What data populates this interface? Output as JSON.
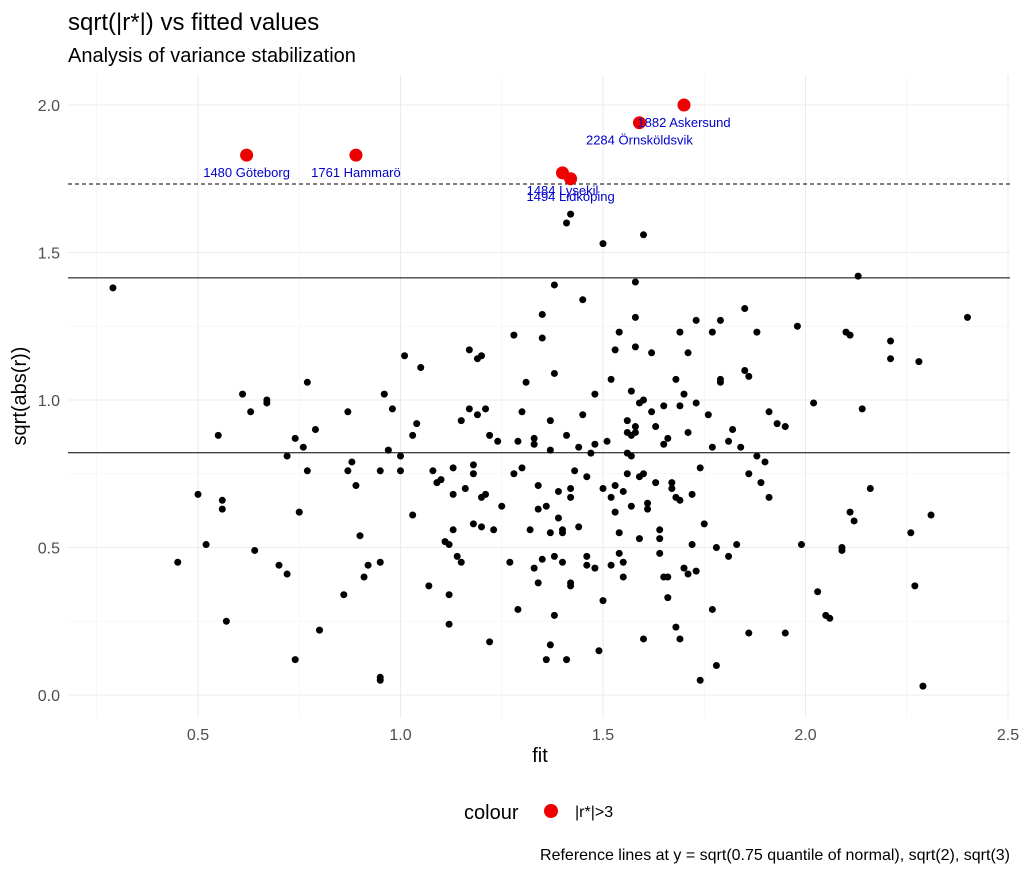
{
  "chart_data": {
    "type": "scatter",
    "title": "sqrt(|r*|) vs fitted values",
    "subtitle": "Analysis of variance stabilization",
    "xlabel": "fit",
    "ylabel": "sqrt(abs(r))",
    "xlim": [
      0.24,
      2.5
    ],
    "ylim": [
      -0.05,
      2.05
    ],
    "xticks": [
      "0.5",
      "1.0",
      "1.5",
      "2.0",
      "2.5"
    ],
    "yticks": [
      "0.0",
      "0.5",
      "1.0",
      "1.5",
      "2.0"
    ],
    "grid": true,
    "reference_lines": {
      "solid": [
        0.821,
        1.414
      ],
      "dashed": [
        1.732
      ]
    },
    "caption": "Reference lines at y = sqrt(0.75 quantile of normal), sqrt(2), sqrt(3)",
    "legend": {
      "title": "colour",
      "label": "|r*|>3",
      "color": "#ee0000",
      "position": "bottom"
    },
    "outliers": [
      {
        "x": 0.62,
        "y": 1.83,
        "label": "1480 Göteborg"
      },
      {
        "x": 0.89,
        "y": 1.83,
        "label": "1761 Hammarö"
      },
      {
        "x": 1.4,
        "y": 1.77,
        "label": "1484 Lysekil"
      },
      {
        "x": 1.42,
        "y": 1.75,
        "label": "1494 Lidköping"
      },
      {
        "x": 1.59,
        "y": 1.94,
        "label": "2284 Örnsköldsvik"
      },
      {
        "x": 1.7,
        "y": 2.0,
        "label": "1882 Askersund"
      }
    ],
    "points": [
      [
        0.29,
        1.38
      ],
      [
        0.45,
        0.45
      ],
      [
        0.5,
        0.68
      ],
      [
        0.52,
        0.51
      ],
      [
        0.55,
        0.88
      ],
      [
        0.56,
        0.66
      ],
      [
        0.56,
        0.63
      ],
      [
        0.57,
        0.25
      ],
      [
        0.61,
        1.02
      ],
      [
        0.63,
        0.96
      ],
      [
        0.64,
        0.49
      ],
      [
        0.67,
        0.99
      ],
      [
        0.67,
        1.0
      ],
      [
        0.7,
        0.44
      ],
      [
        0.72,
        0.81
      ],
      [
        0.72,
        0.41
      ],
      [
        0.74,
        0.12
      ],
      [
        0.74,
        0.87
      ],
      [
        0.75,
        0.62
      ],
      [
        0.76,
        0.84
      ],
      [
        0.77,
        0.76
      ],
      [
        0.77,
        1.06
      ],
      [
        0.79,
        0.9
      ],
      [
        0.8,
        0.22
      ],
      [
        0.86,
        0.34
      ],
      [
        0.87,
        0.76
      ],
      [
        0.87,
        0.96
      ],
      [
        0.88,
        0.79
      ],
      [
        0.89,
        0.71
      ],
      [
        0.9,
        0.54
      ],
      [
        0.91,
        0.4
      ],
      [
        0.92,
        0.44
      ],
      [
        0.95,
        0.45
      ],
      [
        0.95,
        0.76
      ],
      [
        0.95,
        0.06
      ],
      [
        0.95,
        0.05
      ],
      [
        0.96,
        1.02
      ],
      [
        0.97,
        0.83
      ],
      [
        0.98,
        0.97
      ],
      [
        1.0,
        0.76
      ],
      [
        1.01,
        1.15
      ],
      [
        1.03,
        0.61
      ],
      [
        1.03,
        0.88
      ],
      [
        1.04,
        0.92
      ],
      [
        1.05,
        1.11
      ],
      [
        1.07,
        0.37
      ],
      [
        1.08,
        0.76
      ],
      [
        1.09,
        0.72
      ],
      [
        1.1,
        0.73
      ],
      [
        1.11,
        0.52
      ],
      [
        1.12,
        0.51
      ],
      [
        1.12,
        0.24
      ],
      [
        1.12,
        0.34
      ],
      [
        1.13,
        0.68
      ],
      [
        1.13,
        0.56
      ],
      [
        1.14,
        0.47
      ],
      [
        1.15,
        0.45
      ],
      [
        1.15,
        0.93
      ],
      [
        1.16,
        0.7
      ],
      [
        1.17,
        0.97
      ],
      [
        1.17,
        1.17
      ],
      [
        1.18,
        0.78
      ],
      [
        1.18,
        0.75
      ],
      [
        1.19,
        0.95
      ],
      [
        1.19,
        1.14
      ],
      [
        1.2,
        0.67
      ],
      [
        1.2,
        1.15
      ],
      [
        1.2,
        0.57
      ],
      [
        1.21,
        0.68
      ],
      [
        1.21,
        0.97
      ],
      [
        1.22,
        0.18
      ],
      [
        1.22,
        0.88
      ],
      [
        1.23,
        0.56
      ],
      [
        1.24,
        0.86
      ],
      [
        1.27,
        0.45
      ],
      [
        1.28,
        0.75
      ],
      [
        1.28,
        1.22
      ],
      [
        1.29,
        0.86
      ],
      [
        1.29,
        0.29
      ],
      [
        1.3,
        0.77
      ],
      [
        1.31,
        1.06
      ],
      [
        1.32,
        0.56
      ],
      [
        1.33,
        0.43
      ],
      [
        1.33,
        0.87
      ],
      [
        1.33,
        0.85
      ],
      [
        1.34,
        0.63
      ],
      [
        1.34,
        0.71
      ],
      [
        1.35,
        1.21
      ],
      [
        1.35,
        1.29
      ],
      [
        1.35,
        0.46
      ],
      [
        1.36,
        0.64
      ],
      [
        1.36,
        0.12
      ],
      [
        1.37,
        0.83
      ],
      [
        1.37,
        0.55
      ],
      [
        1.37,
        0.93
      ],
      [
        1.37,
        0.17
      ],
      [
        1.38,
        0.27
      ],
      [
        1.38,
        0.47
      ],
      [
        1.38,
        1.39
      ],
      [
        1.38,
        1.09
      ],
      [
        1.39,
        0.69
      ],
      [
        1.39,
        0.6
      ],
      [
        1.4,
        0.56
      ],
      [
        1.4,
        0.55
      ],
      [
        1.4,
        0.45
      ],
      [
        1.41,
        0.12
      ],
      [
        1.41,
        0.88
      ],
      [
        1.41,
        1.6
      ],
      [
        1.42,
        0.7
      ],
      [
        1.42,
        0.67
      ],
      [
        1.42,
        0.37
      ],
      [
        1.42,
        0.38
      ],
      [
        1.42,
        1.63
      ],
      [
        1.43,
        0.76
      ],
      [
        1.44,
        0.57
      ],
      [
        1.45,
        1.34
      ],
      [
        1.45,
        0.95
      ],
      [
        1.46,
        0.47
      ],
      [
        1.46,
        0.44
      ],
      [
        1.47,
        0.82
      ],
      [
        1.48,
        0.85
      ],
      [
        1.48,
        0.43
      ],
      [
        1.48,
        1.02
      ],
      [
        1.49,
        0.15
      ],
      [
        1.5,
        0.7
      ],
      [
        1.5,
        1.53
      ],
      [
        1.5,
        0.32
      ],
      [
        1.51,
        0.86
      ],
      [
        1.52,
        0.67
      ],
      [
        1.52,
        0.44
      ],
      [
        1.53,
        0.71
      ],
      [
        1.53,
        0.62
      ],
      [
        1.54,
        1.23
      ],
      [
        1.54,
        0.48
      ],
      [
        1.54,
        0.55
      ],
      [
        1.55,
        0.69
      ],
      [
        1.55,
        0.45
      ],
      [
        1.55,
        0.4
      ],
      [
        1.56,
        0.93
      ],
      [
        1.56,
        0.89
      ],
      [
        1.56,
        0.82
      ],
      [
        1.56,
        0.75
      ],
      [
        1.57,
        0.88
      ],
      [
        1.57,
        0.81
      ],
      [
        1.57,
        0.64
      ],
      [
        1.57,
        1.03
      ],
      [
        1.58,
        0.91
      ],
      [
        1.58,
        1.4
      ],
      [
        1.58,
        1.28
      ],
      [
        1.58,
        1.18
      ],
      [
        1.58,
        0.89
      ],
      [
        1.59,
        0.53
      ],
      [
        1.59,
        0.99
      ],
      [
        1.6,
        1.0
      ],
      [
        1.6,
        0.75
      ],
      [
        1.6,
        0.19
      ],
      [
        1.6,
        1.56
      ],
      [
        1.61,
        0.63
      ],
      [
        1.61,
        0.65
      ],
      [
        1.62,
        1.16
      ],
      [
        1.62,
        0.96
      ],
      [
        1.63,
        0.72
      ],
      [
        1.64,
        0.53
      ],
      [
        1.64,
        0.56
      ],
      [
        1.64,
        0.48
      ],
      [
        1.65,
        0.85
      ],
      [
        1.65,
        0.4
      ],
      [
        1.65,
        0.98
      ],
      [
        1.66,
        0.33
      ],
      [
        1.66,
        0.4
      ],
      [
        1.67,
        0.72
      ],
      [
        1.67,
        0.7
      ],
      [
        1.68,
        1.07
      ],
      [
        1.68,
        0.67
      ],
      [
        1.68,
        0.23
      ],
      [
        1.69,
        0.66
      ],
      [
        1.69,
        1.23
      ],
      [
        1.69,
        0.98
      ],
      [
        1.69,
        0.19
      ],
      [
        1.7,
        1.02
      ],
      [
        1.7,
        0.43
      ],
      [
        1.71,
        1.16
      ],
      [
        1.71,
        0.41
      ],
      [
        1.71,
        0.89
      ],
      [
        1.72,
        0.51
      ],
      [
        1.72,
        0.68
      ],
      [
        1.73,
        0.42
      ],
      [
        1.73,
        0.99
      ],
      [
        1.73,
        1.27
      ],
      [
        1.74,
        0.05
      ],
      [
        1.74,
        0.77
      ],
      [
        1.76,
        0.95
      ],
      [
        1.77,
        0.29
      ],
      [
        1.77,
        0.84
      ],
      [
        1.77,
        1.23
      ],
      [
        1.78,
        0.5
      ],
      [
        1.78,
        0.1
      ],
      [
        1.79,
        1.06
      ],
      [
        1.79,
        1.07
      ],
      [
        1.79,
        1.27
      ],
      [
        1.81,
        0.86
      ],
      [
        1.81,
        0.47
      ],
      [
        1.82,
        0.9
      ],
      [
        1.83,
        0.51
      ],
      [
        1.84,
        0.84
      ],
      [
        1.85,
        1.31
      ],
      [
        1.85,
        1.1
      ],
      [
        1.86,
        0.75
      ],
      [
        1.86,
        1.08
      ],
      [
        1.86,
        0.21
      ],
      [
        1.88,
        1.23
      ],
      [
        1.88,
        0.81
      ],
      [
        1.89,
        0.72
      ],
      [
        1.9,
        0.79
      ],
      [
        1.91,
        0.96
      ],
      [
        1.93,
        0.92
      ],
      [
        1.95,
        0.91
      ],
      [
        1.95,
        0.21
      ],
      [
        1.98,
        1.25
      ],
      [
        1.99,
        0.51
      ],
      [
        2.02,
        0.99
      ],
      [
        2.03,
        0.35
      ],
      [
        2.05,
        0.27
      ],
      [
        2.06,
        0.26
      ],
      [
        2.09,
        0.5
      ],
      [
        2.09,
        0.49
      ],
      [
        2.1,
        1.23
      ],
      [
        2.11,
        1.22
      ],
      [
        2.11,
        0.62
      ],
      [
        2.12,
        0.59
      ],
      [
        2.13,
        1.42
      ],
      [
        2.14,
        0.97
      ],
      [
        2.16,
        0.7
      ],
      [
        2.21,
        1.2
      ],
      [
        2.21,
        1.14
      ],
      [
        2.26,
        0.55
      ],
      [
        2.27,
        0.37
      ],
      [
        2.28,
        1.13
      ],
      [
        2.29,
        0.03
      ],
      [
        2.31,
        0.61
      ],
      [
        2.4,
        1.28
      ],
      [
        1.0,
        0.81
      ],
      [
        1.13,
        0.77
      ],
      [
        1.25,
        0.64
      ],
      [
        1.44,
        0.84
      ],
      [
        1.52,
        1.07
      ],
      [
        1.63,
        0.91
      ],
      [
        1.75,
        0.58
      ],
      [
        1.3,
        0.96
      ],
      [
        1.46,
        0.74
      ],
      [
        1.66,
        0.87
      ],
      [
        1.53,
        1.17
      ],
      [
        1.18,
        0.58
      ],
      [
        1.91,
        0.67
      ],
      [
        1.59,
        0.74
      ],
      [
        1.34,
        0.38
      ]
    ]
  }
}
